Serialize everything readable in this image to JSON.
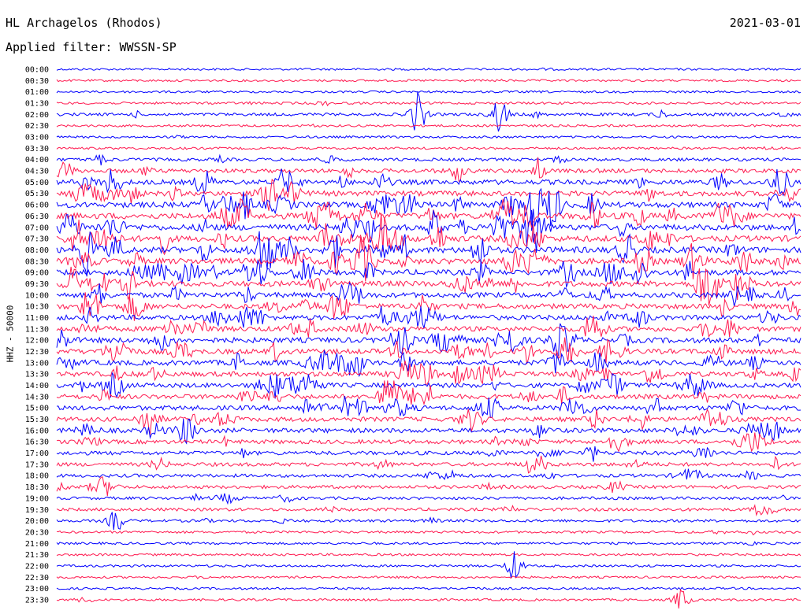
{
  "header": {
    "station": "HL Archagelos (Rhodos)",
    "date": "2021-03-01",
    "filter": "Applied filter: WWSSN-SP"
  },
  "chart_data": {
    "type": "line",
    "title": "HL Archagelos (Rhodos)",
    "subtitle": "Applied filter: WWSSN-SP",
    "date": "2021-03-01",
    "ylabel": "HHZ - 50000",
    "xlabel": "",
    "grid": false,
    "legend": "none",
    "colors": [
      "#0000ff",
      "#ff1a50"
    ],
    "tick_labels": [
      "00:00",
      "00:30",
      "01:00",
      "01:30",
      "02:00",
      "02:30",
      "03:00",
      "03:30",
      "04:00",
      "04:30",
      "05:00",
      "05:30",
      "06:00",
      "06:30",
      "07:00",
      "07:30",
      "08:00",
      "08:30",
      "09:00",
      "09:30",
      "10:00",
      "10:30",
      "11:00",
      "11:30",
      "12:00",
      "12:30",
      "13:00",
      "13:30",
      "14:00",
      "14:30",
      "15:00",
      "15:30",
      "16:00",
      "16:30",
      "17:00",
      "17:30",
      "18:00",
      "18:30",
      "19:00",
      "19:30",
      "20:00",
      "20:30",
      "21:00",
      "21:30",
      "22:00",
      "22:30",
      "23:00",
      "23:30"
    ],
    "activity_level": [
      0.05,
      0.05,
      0.06,
      0.12,
      0.25,
      0.1,
      0.08,
      0.1,
      0.3,
      0.55,
      0.75,
      0.8,
      0.9,
      1.0,
      1.0,
      1.0,
      1.0,
      0.95,
      0.9,
      0.9,
      0.8,
      0.8,
      0.75,
      0.75,
      0.85,
      0.8,
      0.8,
      0.75,
      0.7,
      0.7,
      0.7,
      0.65,
      0.65,
      0.55,
      0.5,
      0.45,
      0.35,
      0.35,
      0.25,
      0.3,
      0.2,
      0.12,
      0.1,
      0.1,
      0.1,
      0.08,
      0.08,
      0.1
    ],
    "events": [
      {
        "row": 4,
        "x": 0.485,
        "amp": 3
      },
      {
        "row": 4,
        "x": 0.595,
        "amp": 2.5
      },
      {
        "row": 12,
        "x": 0.965,
        "amp": 1.5
      },
      {
        "row": 16,
        "x": 0.08,
        "amp": 1.5
      },
      {
        "row": 16,
        "x": 0.31,
        "amp": 2
      },
      {
        "row": 17,
        "x": 0.375,
        "amp": 1.5
      },
      {
        "row": 24,
        "x": 0.67,
        "amp": 1.5
      },
      {
        "row": 40,
        "x": 0.08,
        "amp": 1.5
      },
      {
        "row": 44,
        "x": 0.615,
        "amp": 2
      },
      {
        "row": 47,
        "x": 0.84,
        "amp": 1.5
      }
    ]
  }
}
